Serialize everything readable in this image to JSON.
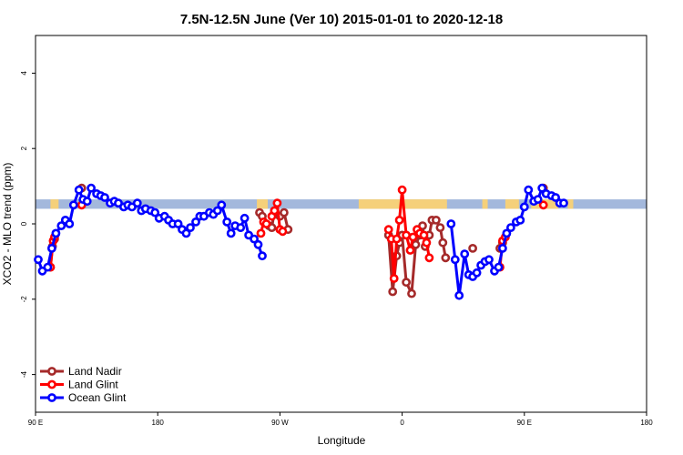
{
  "chart_data": {
    "type": "line",
    "title": "7.5N-12.5N June (Ver 10)   2015-01-01 to 2020-12-18",
    "xlabel": "Longitude",
    "ylabel": "XCO2 - MLO trend (ppm)",
    "xlim": [
      90,
      450
    ],
    "ylim": [
      -5,
      5
    ],
    "xticks": [
      {
        "value": 90,
        "label": "90 E"
      },
      {
        "value": 180,
        "label": "180"
      },
      {
        "value": 270,
        "label": "90 W"
      },
      {
        "value": 360,
        "label": "0"
      },
      {
        "value": 450,
        "label": "90 E"
      },
      {
        "value": 540,
        "label": "180"
      }
    ],
    "yticks": [
      {
        "value": -4,
        "label": "-4"
      },
      {
        "value": -2,
        "label": "-2"
      },
      {
        "value": 0,
        "label": "0"
      },
      {
        "value": 2,
        "label": "2"
      },
      {
        "value": 4,
        "label": "4"
      }
    ],
    "x_axis_range": [
      90,
      540
    ],
    "legend_position": "bottom-left",
    "land_band": {
      "y_low": 0.4,
      "y_high": 0.65,
      "ocean_color": "#a3b8dc",
      "land_color": "#f5d07a"
    },
    "land_segments": [
      [
        101,
        107
      ],
      [
        253,
        261
      ],
      [
        328,
        393
      ],
      [
        419,
        423
      ],
      [
        436,
        446
      ],
      [
        455,
        475
      ],
      [
        482,
        486
      ]
    ],
    "series": [
      {
        "name": "Land Nadir",
        "color": "#a52a2a",
        "segments": [
          [
            [
              101,
              -1.15
            ],
            [
              102.5,
              -0.6
            ],
            [
              104,
              -0.4
            ]
          ],
          [
            [
              124,
              0.95
            ]
          ],
          [
            [
              255,
              0.3
            ],
            [
              257,
              0.2
            ]
          ],
          [
            [
              262,
              -0.05
            ],
            [
              264,
              -0.1
            ],
            [
              266,
              0.35
            ]
          ],
          [
            [
              270,
              0.2
            ],
            [
              273,
              0.3
            ],
            [
              276,
              -0.15
            ]
          ],
          [
            [
              350,
              -0.3
            ],
            [
              353,
              -1.8
            ],
            [
              356,
              -0.85
            ],
            [
              358,
              -0.5
            ],
            [
              360,
              -0.3
            ],
            [
              363,
              -1.55
            ],
            [
              367,
              -1.85
            ],
            [
              370,
              -0.55
            ],
            [
              373,
              -0.3
            ],
            [
              375,
              -0.05
            ],
            [
              377,
              -0.6
            ],
            [
              380,
              -0.3
            ],
            [
              382,
              0.1
            ],
            [
              385,
              0.1
            ],
            [
              388,
              -0.1
            ],
            [
              390,
              -0.5
            ],
            [
              392,
              -0.9
            ]
          ],
          [
            [
              412,
              -0.65
            ]
          ],
          [
            [
              432,
              -0.65
            ],
            [
              434,
              -0.5
            ]
          ],
          [
            [
              464,
              0.95
            ]
          ]
        ]
      },
      {
        "name": "Land Glint",
        "color": "#ff0000",
        "segments": [
          [
            [
              101,
              -1.15
            ],
            [
              103,
              -0.45
            ],
            [
              104,
              -0.35
            ]
          ],
          [
            [
              124,
              0.5
            ]
          ],
          [
            [
              256,
              -0.25
            ],
            [
              258,
              0.05
            ],
            [
              260,
              0.0
            ]
          ],
          [
            [
              264,
              0.2
            ],
            [
              266,
              0.35
            ],
            [
              268,
              0.55
            ],
            [
              270,
              -0.15
            ],
            [
              272,
              -0.2
            ]
          ],
          [
            [
              350,
              -0.15
            ],
            [
              352,
              -0.4
            ],
            [
              354,
              -1.45
            ],
            [
              356,
              -0.4
            ],
            [
              358,
              0.1
            ],
            [
              360,
              0.9
            ],
            [
              363,
              -0.3
            ],
            [
              366,
              -0.7
            ],
            [
              368,
              -0.35
            ],
            [
              371,
              -0.15
            ],
            [
              373,
              -0.25
            ],
            [
              376,
              -0.3
            ],
            [
              378,
              -0.5
            ],
            [
              380,
              -0.9
            ]
          ],
          [
            [
              432,
              -1.15
            ],
            [
              434,
              -0.45
            ],
            [
              436,
              -0.35
            ]
          ],
          [
            [
              464,
              0.5
            ]
          ]
        ]
      },
      {
        "name": "Ocean Glint",
        "color": "#0000ff",
        "segments": [
          [
            [
              92,
              -0.95
            ],
            [
              95,
              -1.25
            ],
            [
              99,
              -1.15
            ],
            [
              102,
              -0.65
            ],
            [
              105,
              -0.25
            ],
            [
              109,
              -0.05
            ],
            [
              112,
              0.1
            ],
            [
              115,
              0.0
            ],
            [
              118,
              0.5
            ],
            [
              122,
              0.9
            ],
            [
              125,
              0.65
            ],
            [
              128,
              0.6
            ],
            [
              131,
              0.95
            ],
            [
              135,
              0.8
            ],
            [
              138,
              0.75
            ],
            [
              141,
              0.7
            ],
            [
              145,
              0.55
            ],
            [
              148,
              0.6
            ],
            [
              151,
              0.55
            ],
            [
              155,
              0.45
            ],
            [
              158,
              0.5
            ],
            [
              161,
              0.45
            ],
            [
              165,
              0.55
            ],
            [
              168,
              0.35
            ],
            [
              171,
              0.4
            ],
            [
              175,
              0.35
            ],
            [
              178,
              0.3
            ],
            [
              181,
              0.15
            ],
            [
              185,
              0.2
            ],
            [
              188,
              0.1
            ],
            [
              191,
              0.0
            ],
            [
              195,
              0.0
            ],
            [
              198,
              -0.15
            ],
            [
              201,
              -0.25
            ],
            [
              204,
              -0.1
            ],
            [
              208,
              0.05
            ],
            [
              211,
              0.2
            ],
            [
              214,
              0.2
            ],
            [
              218,
              0.3
            ],
            [
              221,
              0.25
            ],
            [
              224,
              0.35
            ],
            [
              227,
              0.5
            ],
            [
              231,
              0.05
            ],
            [
              234,
              -0.25
            ],
            [
              237,
              -0.05
            ],
            [
              241,
              -0.1
            ],
            [
              244,
              0.15
            ],
            [
              247,
              -0.3
            ],
            [
              251,
              -0.4
            ],
            [
              254,
              -0.55
            ],
            [
              257,
              -0.85
            ]
          ],
          [
            [
              396,
              0.0
            ],
            [
              399,
              -0.95
            ],
            [
              402,
              -1.9
            ],
            [
              406,
              -0.8
            ],
            [
              409,
              -1.35
            ],
            [
              412,
              -1.4
            ],
            [
              415,
              -1.3
            ],
            [
              418,
              -1.1
            ],
            [
              421,
              -1.0
            ],
            [
              424,
              -0.95
            ],
            [
              428,
              -1.25
            ],
            [
              431,
              -1.15
            ],
            [
              434,
              -0.65
            ],
            [
              437,
              -0.25
            ],
            [
              440,
              -0.1
            ],
            [
              444,
              0.05
            ],
            [
              447,
              0.1
            ],
            [
              450,
              0.45
            ],
            [
              453,
              0.9
            ],
            [
              457,
              0.6
            ],
            [
              460,
              0.65
            ],
            [
              463,
              0.95
            ],
            [
              466,
              0.8
            ],
            [
              470,
              0.75
            ],
            [
              473,
              0.7
            ],
            [
              476,
              0.55
            ],
            [
              479,
              0.55
            ]
          ]
        ]
      }
    ]
  }
}
